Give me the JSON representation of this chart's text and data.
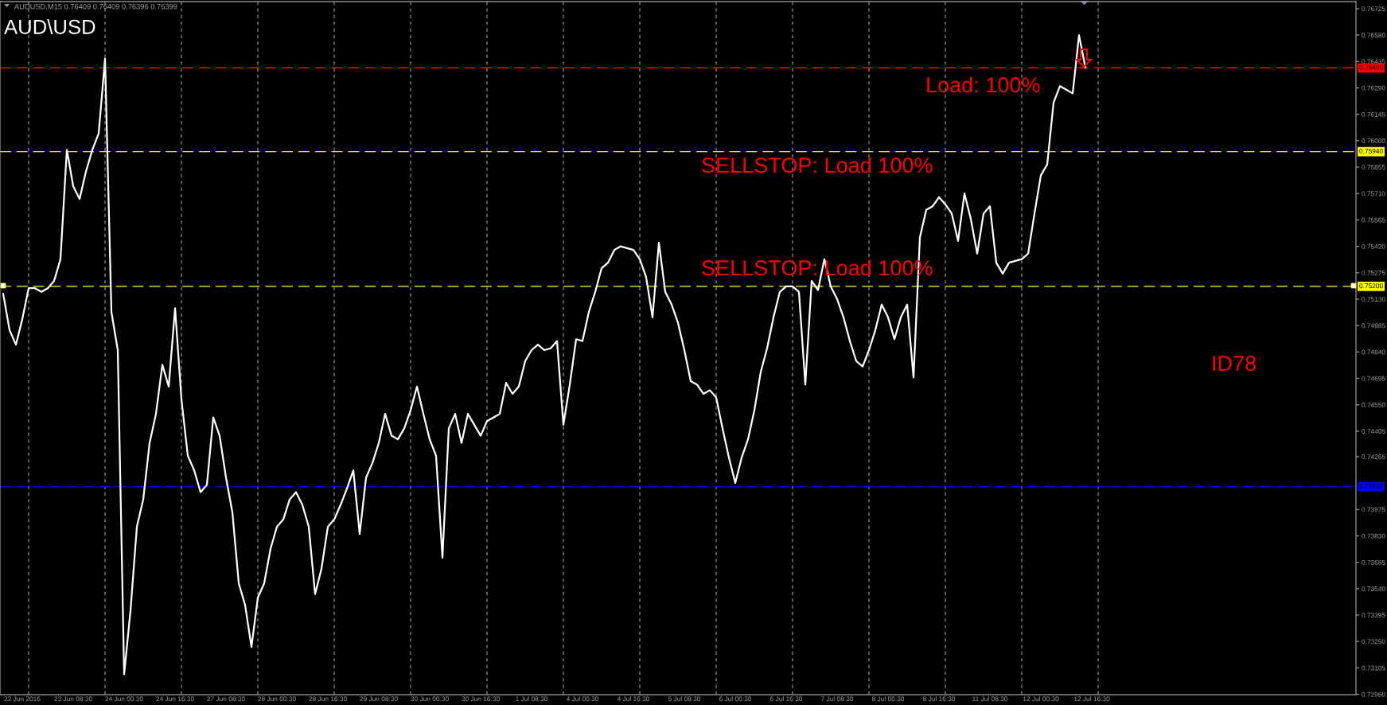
{
  "chart_data": {
    "type": "line",
    "title": "AUDUSD,M15 0.76409 0.76409 0.76396 0.76399",
    "subtitle": "AUD\\USD",
    "annotations": [
      "Load: 100%",
      "SELLSTOP: Load 100%",
      "SELLSTOP: Load 100%",
      "ID78"
    ],
    "color": "#ffffff",
    "categories": [
      null,
      null,
      null,
      "22 Jun 2016",
      null,
      null,
      null,
      null,
      null,
      null,
      null,
      "23 Jun 08:30",
      null,
      null,
      null,
      null,
      null,
      null,
      null,
      "24 Jun 00:30",
      null,
      null,
      null,
      null,
      null,
      null,
      null,
      "24 Jun 16:30",
      null,
      null,
      null,
      null,
      null,
      null,
      null,
      "27 Jun 08:30",
      null,
      null,
      null,
      null,
      null,
      null,
      null,
      "28 Jun 00:30",
      null,
      null,
      null,
      null,
      null,
      null,
      null,
      "28 Jun 16:30",
      null,
      null,
      null,
      null,
      null,
      null,
      null,
      "29 Jun 08:30",
      null,
      null,
      null,
      null,
      null,
      null,
      null,
      "30 Jun 00:30",
      null,
      null,
      null,
      null,
      null,
      null,
      null,
      "30 Jun 16:30",
      null,
      null,
      null,
      null,
      null,
      null,
      null,
      "1 Jul 08:30",
      null,
      null,
      null,
      null,
      null,
      null,
      null,
      "4 Jul 00:30",
      null,
      null,
      null,
      null,
      null,
      null,
      null,
      "4 Jul 16:30",
      null,
      null,
      null,
      null,
      null,
      null,
      null,
      "5 Jul 08:30",
      null,
      null,
      null,
      null,
      null,
      null,
      null,
      "6 Jul 00:30",
      null,
      null,
      null,
      null,
      null,
      null,
      null,
      "6 Jul 16:30",
      null,
      null,
      null,
      null,
      null,
      null,
      null,
      "7 Jul 08:30",
      null,
      null,
      null,
      null,
      null,
      null,
      null,
      "8 Jul 00:30",
      null,
      null,
      null,
      null,
      null,
      null,
      null,
      "8 Jul 16:30",
      null,
      null,
      null,
      null,
      null,
      null,
      null,
      "11 Jul 08:30",
      null,
      null,
      null,
      null,
      null,
      null,
      null,
      "12 Jul 00:30",
      null,
      null,
      null,
      null,
      null,
      null,
      null,
      "12 Jul 16:30",
      null,
      null,
      null,
      null,
      null,
      null,
      null,
      null,
      null,
      null,
      null,
      null,
      null,
      null,
      null,
      null,
      null,
      null,
      null,
      null,
      null,
      null,
      null,
      null,
      null,
      null,
      null,
      null,
      null,
      null,
      null,
      null,
      null,
      null,
      null,
      null,
      null,
      null,
      null,
      null,
      null
    ],
    "values": [
      0.7516,
      0.7496,
      0.7488,
      0.7502,
      0.7519,
      0.7519,
      0.7517,
      0.7519,
      0.7523,
      0.7535,
      0.7595,
      0.7575,
      0.7568,
      0.7583,
      0.7595,
      0.7604,
      0.7645,
      0.7506,
      0.7485,
      0.7307,
      0.7342,
      0.7388,
      0.7403,
      0.7434,
      0.745,
      0.7477,
      0.7465,
      0.7508,
      0.7458,
      0.7427,
      0.7419,
      0.7407,
      0.7411,
      0.7448,
      0.7438,
      0.7415,
      0.7396,
      0.7357,
      0.7345,
      0.7322,
      0.7349,
      0.7357,
      0.7376,
      0.7388,
      0.7392,
      0.7403,
      0.7407,
      0.74,
      0.7388,
      0.7351,
      0.7365,
      0.7388,
      0.7392,
      0.74,
      0.7409,
      0.7419,
      0.7384,
      0.7415,
      0.7423,
      0.7434,
      0.745,
      0.7438,
      0.7436,
      0.7442,
      0.7452,
      0.7465,
      0.745,
      0.7436,
      0.7427,
      0.7371,
      0.7442,
      0.745,
      0.7434,
      0.745,
      0.7444,
      0.7438,
      0.7446,
      0.7448,
      0.745,
      0.7467,
      0.7461,
      0.7465,
      0.7479,
      0.7485,
      0.7488,
      0.7485,
      0.7486,
      0.749,
      0.7444,
      0.7466,
      0.7491,
      0.749,
      0.7506,
      0.7517,
      0.753,
      0.7533,
      0.754,
      0.7542,
      0.7541,
      0.754,
      0.7535,
      0.7525,
      0.7503,
      0.7544,
      0.7517,
      0.751,
      0.75,
      0.7485,
      0.7468,
      0.7466,
      0.7461,
      0.7463,
      0.7459,
      0.7442,
      0.7426,
      0.7412,
      0.7426,
      0.7436,
      0.7452,
      0.7473,
      0.7486,
      0.7503,
      0.7517,
      0.752,
      0.752,
      0.7517,
      0.7466,
      0.7523,
      0.7518,
      0.7535,
      0.752,
      0.7513,
      0.7503,
      0.749,
      0.7479,
      0.7476,
      0.7485,
      0.7496,
      0.751,
      0.7503,
      0.7491,
      0.7503,
      0.751,
      0.747,
      0.7547,
      0.7562,
      0.7564,
      0.7569,
      0.7565,
      0.756,
      0.7545,
      0.7571,
      0.7557,
      0.7538,
      0.756,
      0.7564,
      0.7533,
      0.7527,
      0.7533,
      0.7534,
      0.7535,
      0.7538,
      0.756,
      0.7581,
      0.7587,
      0.7621,
      0.763,
      0.7628,
      0.7626,
      0.7658,
      0.764,
      null,
      null,
      null,
      null,
      null,
      null,
      null,
      null,
      null,
      null,
      null,
      null,
      null,
      null,
      null,
      null,
      null,
      null,
      null,
      null,
      null,
      null,
      null,
      null,
      null,
      null,
      null,
      null,
      null,
      null,
      null,
      null,
      null,
      null,
      null,
      null,
      null,
      null,
      null,
      null,
      null,
      null
    ],
    "ylim": [
      0.72958,
      0.76764
    ],
    "yticks": [
      0.76725,
      {
        "value": 0.7658,
        "label": "0.76580"
      },
      0.76435,
      {
        "value": 0.7629,
        "label": "0.76290"
      },
      0.76145,
      {
        "value": 0.76,
        "label": "0.76000"
      },
      0.75855,
      {
        "value": 0.7571,
        "label": "0.75710"
      },
      0.75565,
      {
        "value": 0.7542,
        "label": "0.75420"
      },
      0.75275,
      {
        "value": 0.7513,
        "label": "0.75130"
      },
      0.74985,
      {
        "value": 0.7484,
        "label": "0.74840"
      },
      0.74695,
      {
        "value": 0.7455,
        "label": "0.74550"
      },
      0.74405,
      0.74265,
      0.73975,
      {
        "value": 0.7383,
        "label": "0.73830"
      },
      0.73685,
      {
        "value": 0.7354,
        "label": "0.73540"
      },
      0.73395,
      {
        "value": 0.7325,
        "label": "0.73250"
      },
      0.73105,
      {
        "value": 0.7296,
        "label": "0.72960"
      }
    ],
    "ref_lines": [
      {
        "axis": "y",
        "value": 0.764,
        "label": "0.76400",
        "color": "#ff0000",
        "line_style": "dashed"
      },
      {
        "axis": "y",
        "value": 0.7594,
        "label": "0.75940",
        "color": "#ffff00",
        "line_style": "dashed"
      },
      {
        "axis": "y",
        "value": 0.752,
        "label": "0.75200",
        "color": "#ffff00",
        "line_style": "dashed"
      },
      {
        "axis": "y",
        "value": 0.741,
        "label": "0.74100",
        "color": "#0000ff",
        "line_style": "dashed"
      }
    ]
  }
}
